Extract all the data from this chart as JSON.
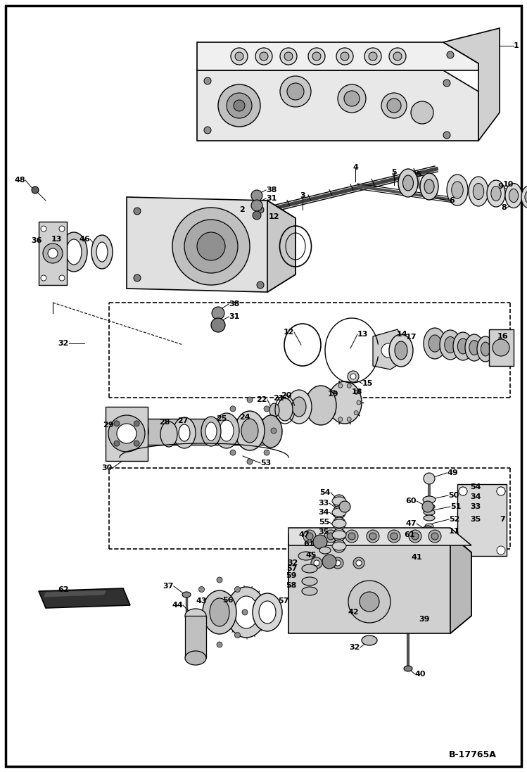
{
  "background_color": "#ffffff",
  "border_color": "#000000",
  "diagram_ref": "B-17765A",
  "border_width": 2.5,
  "fig_width": 7.49,
  "fig_height": 10.97,
  "dpi": 100
}
